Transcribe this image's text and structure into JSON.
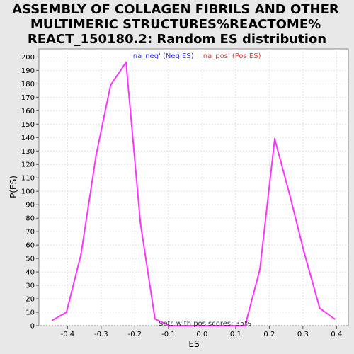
{
  "chart_data": {
    "type": "line",
    "title_lines": [
      "ASSEMBLY OF COLLAGEN FIBRILS AND OTHER",
      "MULTIMERIC STRUCTURES%REACTOME%",
      "REACT_150180.2: Random ES distribution"
    ],
    "xlabel": "ES",
    "ylabel": "P(ES)",
    "xlim": [
      -0.485,
      0.435
    ],
    "ylim": [
      0,
      206
    ],
    "xticks": [
      -0.4,
      -0.3,
      -0.2,
      -0.1,
      0.0,
      0.1,
      0.2,
      0.3,
      0.4
    ],
    "xtick_labels": [
      "-0.4",
      "-0.3",
      "-0.2",
      "-0.1",
      "0.0",
      "0.1",
      "0.2",
      "0.3",
      "0.4"
    ],
    "yticks": [
      0,
      10,
      20,
      30,
      40,
      50,
      60,
      70,
      80,
      90,
      100,
      110,
      120,
      130,
      140,
      150,
      160,
      170,
      180,
      190,
      200
    ],
    "grid": true,
    "legend": [
      {
        "label": "'na_neg' (Neg ES)",
        "color": "#3333ff"
      },
      {
        "label": "'na_pos' (Pos ES)",
        "color": "#ff3333"
      }
    ],
    "legend_position": "top-center",
    "annotation": "Sets with pos scores: 35%",
    "series": [
      {
        "color": "#ff33ff",
        "x": [
          -0.445,
          -0.403,
          -0.36,
          -0.315,
          -0.272,
          -0.226,
          -0.183,
          -0.14,
          -0.097
        ],
        "y": [
          4,
          10,
          53,
          127,
          179,
          196,
          76,
          5,
          0
        ]
      },
      {
        "color": "#ff33ff",
        "x": [
          -0.097,
          0.128,
          0.172,
          0.216,
          0.26,
          0.303,
          0.35,
          0.394
        ],
        "y": [
          0,
          0,
          42,
          139,
          98,
          55,
          13,
          5
        ]
      }
    ]
  }
}
